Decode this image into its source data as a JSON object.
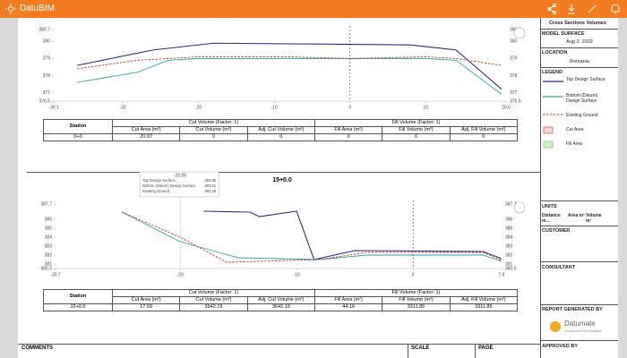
{
  "app": {
    "name": "DatuBIM"
  },
  "sections": [
    {
      "chart": {
        "type": "line",
        "xlim": [
          -39.1,
          20.6
        ],
        "ylim": [
          376.5,
          380.7
        ],
        "xticks": [
          -39.1,
          -30,
          -20,
          -10,
          0,
          10,
          20.6
        ],
        "yticks": [
          376.5,
          377,
          378,
          379,
          380,
          380.7
        ],
        "series": [
          {
            "name": "Top Design Surface",
            "color": "#2b2b88",
            "x": [
              -36,
              -26,
              -18,
              8,
              14,
              20
            ],
            "values": [
              378.6,
              379.5,
              379.9,
              379.8,
              379.5,
              377.2
            ]
          },
          {
            "name": "Bottom (Datum) Design Surface",
            "color": "#2fa39a",
            "x": [
              -36,
              -28,
              -24,
              -20,
              10,
              14,
              20
            ],
            "values": [
              377.6,
              378.2,
              378.9,
              379,
              379,
              378.9,
              376.9
            ]
          },
          {
            "name": "Existing Ground",
            "color": "#c0392b",
            "x": [
              -36,
              -28,
              -20,
              -8,
              0,
              10,
              14,
              20
            ],
            "values": [
              378.4,
              378.9,
              379.1,
              379.1,
              379,
              379.1,
              379,
              378.6
            ]
          }
        ]
      },
      "table": {
        "groups": [
          "Station",
          "Cut Volume (Factor: 1)",
          "Fill Volume (Factor: 1)"
        ],
        "columns": [
          "Cut Area (m²)",
          "Cut Volume (m³)",
          "Adj. Cut Volume (m³)",
          "Fill Area (m²)",
          "Fill Volume (m³)",
          "Adj. Fill Volume (m³)"
        ],
        "row": [
          "0+0",
          20.97,
          0,
          0,
          0,
          0,
          0
        ]
      }
    },
    {
      "title": "15+0.0",
      "chart": {
        "type": "line",
        "xlim": [
          -30.7,
          7.6
        ],
        "ylim": [
          380.5,
          387.7
        ],
        "xticks": [
          -30.7,
          -20,
          -10,
          0,
          7.6
        ],
        "yticks": [
          380.5,
          381,
          382,
          383,
          384,
          385,
          386,
          387.7
        ],
        "series": [
          {
            "name": "Top Design Surface",
            "color": "#2b2b88",
            "x": [
              -18,
              -14,
              -13.2,
              -10,
              -8.5,
              -5,
              6,
              7.6
            ],
            "values": [
              386.9,
              386.8,
              386.3,
              386.9,
              381.5,
              382.5,
              382.4,
              381.6
            ]
          },
          {
            "name": "Bottom (Datum) Design Surface",
            "color": "#2fa39a",
            "x": [
              -25,
              -20,
              -15,
              -8,
              -4,
              6,
              7.6
            ],
            "values": [
              386.8,
              383.5,
              381.7,
              381.5,
              382,
              382,
              381.3
            ]
          },
          {
            "name": "Existing Ground",
            "color": "#c0392b",
            "x": [
              -25,
              -20,
              -16,
              -8,
              -4,
              6,
              7.6
            ],
            "values": [
              386.8,
              384,
              381.2,
              381.5,
              382.3,
              382.3,
              381.4
            ]
          }
        ]
      },
      "tooltip": {
        "title": "-20.05",
        "rows": [
          {
            "name": "Top Design Surface",
            "value": 383.65
          },
          {
            "name": "Bottom (Datum) Design Surface",
            "value": 383.51
          },
          {
            "name": "Existing Ground",
            "value": 383.49
          }
        ]
      },
      "table": {
        "groups": [
          "Station",
          "Cut Volume (Factor: 1)",
          "Fill Volume (Factor: 1)"
        ],
        "columns": [
          "Cut Area (m²)",
          "Cut Volume (m³)",
          "Adj. Cut Volume (m³)",
          "Fill Area (m²)",
          "Fill Volume (m³)",
          "Adj. Fill Volume (m³)"
        ],
        "row": [
          "15+0.0",
          17.59,
          3642.19,
          3642.19,
          44.16,
          3311.85,
          3311.85
        ]
      }
    }
  ],
  "sidebar": {
    "title": "Cross Sections Volumes",
    "model_label": "MODEL SURFACE",
    "model_date": "Aug 2, 2022",
    "location_label": "LOCATION",
    "location": "Romania",
    "legend_label": "LEGEND",
    "legend": [
      "Top Design Surface",
      "Bottom (Datum) Design Surface",
      "Existing Ground",
      "Cut Area",
      "Fill Area"
    ],
    "units_label": "UNITS",
    "units": [
      "Distance m...",
      "Area m²",
      "Volume m³"
    ],
    "customer": "CUSTOMER",
    "consultant": "CONSULTANT",
    "generated_by": "REPORT GENERATED BY",
    "logo": "Datumate",
    "logo_sub": "Construction Site Analytics",
    "approved_by": "APPROVED BY"
  },
  "footer": {
    "comments": "COMMENTS",
    "scale": "SCALE",
    "page": "PAGE"
  }
}
